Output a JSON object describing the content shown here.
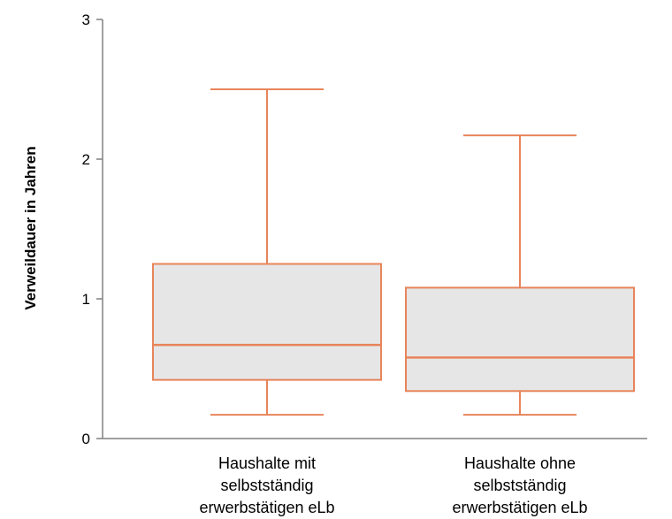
{
  "chart_data": {
    "type": "box",
    "ylabel": "Verweildauer in Jahren",
    "xlabel": "",
    "ylim": [
      0,
      3
    ],
    "yticks": [
      "0",
      "1",
      "2",
      "3"
    ],
    "grid": false,
    "box_fill": "#e6e6e6",
    "line_color": "#e8845a",
    "axis_color": "#808080",
    "categories": [
      [
        "Haushalte mit",
        "selbstständig",
        "erwerbstätigen eLb"
      ],
      [
        "Haushalte ohne",
        "selbstständig",
        "erwerbstätigen eLb"
      ]
    ],
    "boxes": [
      {
        "whisker_low": 0.17,
        "q1": 0.42,
        "median": 0.67,
        "q3": 1.25,
        "whisker_high": 2.5
      },
      {
        "whisker_low": 0.17,
        "q1": 0.34,
        "median": 0.58,
        "q3": 1.08,
        "whisker_high": 2.17
      }
    ]
  }
}
